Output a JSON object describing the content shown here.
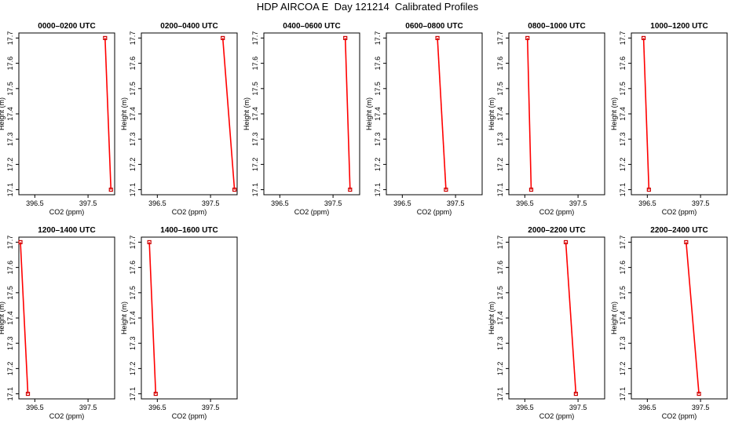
{
  "figure_title": "HDP AIRCOA E  Day 121214  Calibrated Profiles",
  "colors": {
    "line": "#ff0000",
    "marker": "#cc0000",
    "axes": "#000000"
  },
  "chart_data": [
    {
      "type": "line",
      "title": "0000–0200 UTC",
      "xlabel": "CO2 (ppm)",
      "ylabel": "Height (m)",
      "xlim": [
        396.2,
        398.0
      ],
      "ylim": [
        17.08,
        17.72
      ],
      "xticks": [
        396.5,
        397.5
      ],
      "xtick_labels": [
        "396.5",
        "397.5"
      ],
      "yticks": [
        17.1,
        17.2,
        17.3,
        17.4,
        17.5,
        17.6,
        17.7
      ],
      "ytick_labels": [
        "17.1",
        "17.2",
        "17.3",
        "17.4",
        "17.5",
        "17.6",
        "17.7"
      ],
      "points": [
        {
          "x": 397.82,
          "y": 17.7
        },
        {
          "x": 397.93,
          "y": 17.1
        }
      ]
    },
    {
      "type": "line",
      "title": "0200–0400 UTC",
      "xlabel": "CO2 (ppm)",
      "ylabel": "Height (m)",
      "xlim": [
        396.2,
        398.0
      ],
      "ylim": [
        17.08,
        17.72
      ],
      "xticks": [
        396.5,
        397.5
      ],
      "xtick_labels": [
        "396.5",
        "397.5"
      ],
      "yticks": [
        17.1,
        17.2,
        17.3,
        17.4,
        17.5,
        17.6,
        17.7
      ],
      "ytick_labels": [
        "17.1",
        "17.2",
        "17.3",
        "17.4",
        "17.5",
        "17.6",
        "17.7"
      ],
      "points": [
        {
          "x": 397.73,
          "y": 17.7
        },
        {
          "x": 397.95,
          "y": 17.1
        }
      ]
    },
    {
      "type": "line",
      "title": "0400–0600 UTC",
      "xlabel": "CO2 (ppm)",
      "ylabel": "Height (m)",
      "xlim": [
        396.2,
        398.0
      ],
      "ylim": [
        17.08,
        17.72
      ],
      "xticks": [
        396.5,
        397.5
      ],
      "xtick_labels": [
        "396.5",
        "397.5"
      ],
      "yticks": [
        17.1,
        17.2,
        17.3,
        17.4,
        17.5,
        17.6,
        17.7
      ],
      "ytick_labels": [
        "17.1",
        "17.2",
        "17.3",
        "17.4",
        "17.5",
        "17.6",
        "17.7"
      ],
      "points": [
        {
          "x": 397.73,
          "y": 17.7
        },
        {
          "x": 397.82,
          "y": 17.1
        }
      ]
    },
    {
      "type": "line",
      "title": "0600–0800 UTC",
      "xlabel": "CO2 (ppm)",
      "ylabel": "Height (m)",
      "xlim": [
        396.2,
        398.0
      ],
      "ylim": [
        17.08,
        17.72
      ],
      "xticks": [
        396.5,
        397.5
      ],
      "xtick_labels": [
        "396.5",
        "397.5"
      ],
      "yticks": [
        17.1,
        17.2,
        17.3,
        17.4,
        17.5,
        17.6,
        17.7
      ],
      "ytick_labels": [
        "17.1",
        "17.2",
        "17.3",
        "17.4",
        "17.5",
        "17.6",
        "17.7"
      ],
      "points": [
        {
          "x": 397.16,
          "y": 17.7
        },
        {
          "x": 397.32,
          "y": 17.1
        }
      ]
    },
    {
      "type": "line",
      "title": "0800–1000 UTC",
      "xlabel": "CO2 (ppm)",
      "ylabel": "Height (m)",
      "xlim": [
        396.2,
        398.0
      ],
      "ylim": [
        17.08,
        17.72
      ],
      "xticks": [
        396.5,
        397.5
      ],
      "xtick_labels": [
        "396.5",
        "397.5"
      ],
      "yticks": [
        17.1,
        17.2,
        17.3,
        17.4,
        17.5,
        17.6,
        17.7
      ],
      "ytick_labels": [
        "17.1",
        "17.2",
        "17.3",
        "17.4",
        "17.5",
        "17.6",
        "17.7"
      ],
      "points": [
        {
          "x": 396.55,
          "y": 17.7
        },
        {
          "x": 396.62,
          "y": 17.1
        }
      ]
    },
    {
      "type": "line",
      "title": "1000–1200 UTC",
      "xlabel": "CO2 (ppm)",
      "ylabel": "Height (m)",
      "xlim": [
        396.2,
        398.0
      ],
      "ylim": [
        17.08,
        17.72
      ],
      "xticks": [
        396.5,
        397.5
      ],
      "xtick_labels": [
        "396.5",
        "397.5"
      ],
      "yticks": [
        17.1,
        17.2,
        17.3,
        17.4,
        17.5,
        17.6,
        17.7
      ],
      "ytick_labels": [
        "17.1",
        "17.2",
        "17.3",
        "17.4",
        "17.5",
        "17.6",
        "17.7"
      ],
      "points": [
        {
          "x": 396.43,
          "y": 17.7
        },
        {
          "x": 396.53,
          "y": 17.1
        }
      ]
    },
    {
      "type": "line",
      "title": "1200–1400 UTC",
      "xlabel": "CO2 (ppm)",
      "ylabel": "Height (m)",
      "xlim": [
        396.2,
        398.0
      ],
      "ylim": [
        17.08,
        17.72
      ],
      "xticks": [
        396.5,
        397.5
      ],
      "xtick_labels": [
        "396.5",
        "397.5"
      ],
      "yticks": [
        17.1,
        17.2,
        17.3,
        17.4,
        17.5,
        17.6,
        17.7
      ],
      "ytick_labels": [
        "17.1",
        "17.2",
        "17.3",
        "17.4",
        "17.5",
        "17.6",
        "17.7"
      ],
      "points": [
        {
          "x": 396.23,
          "y": 17.7
        },
        {
          "x": 396.37,
          "y": 17.1
        }
      ]
    },
    {
      "type": "line",
      "title": "1400–1600 UTC",
      "xlabel": "CO2 (ppm)",
      "ylabel": "Height (m)",
      "xlim": [
        396.2,
        398.0
      ],
      "ylim": [
        17.08,
        17.72
      ],
      "xticks": [
        396.5,
        397.5
      ],
      "xtick_labels": [
        "396.5",
        "397.5"
      ],
      "yticks": [
        17.1,
        17.2,
        17.3,
        17.4,
        17.5,
        17.6,
        17.7
      ],
      "ytick_labels": [
        "17.1",
        "17.2",
        "17.3",
        "17.4",
        "17.5",
        "17.6",
        "17.7"
      ],
      "points": [
        {
          "x": 396.35,
          "y": 17.7
        },
        {
          "x": 396.47,
          "y": 17.1
        }
      ]
    },
    {
      "type": "line",
      "title": "2000–2200 UTC",
      "xlabel": "CO2 (ppm)",
      "ylabel": "Height (m)",
      "xlim": [
        396.2,
        398.0
      ],
      "ylim": [
        17.08,
        17.72
      ],
      "xticks": [
        396.5,
        397.5
      ],
      "xtick_labels": [
        "396.5",
        "397.5"
      ],
      "yticks": [
        17.1,
        17.2,
        17.3,
        17.4,
        17.5,
        17.6,
        17.7
      ],
      "ytick_labels": [
        "17.1",
        "17.2",
        "17.3",
        "17.4",
        "17.5",
        "17.6",
        "17.7"
      ],
      "points": [
        {
          "x": 397.27,
          "y": 17.7
        },
        {
          "x": 397.46,
          "y": 17.1
        }
      ]
    },
    {
      "type": "line",
      "title": "2200–2400 UTC",
      "xlabel": "CO2 (ppm)",
      "ylabel": "Height (m)",
      "xlim": [
        396.2,
        398.0
      ],
      "ylim": [
        17.08,
        17.72
      ],
      "xticks": [
        396.5,
        397.5
      ],
      "xtick_labels": [
        "396.5",
        "397.5"
      ],
      "yticks": [
        17.1,
        17.2,
        17.3,
        17.4,
        17.5,
        17.6,
        17.7
      ],
      "ytick_labels": [
        "17.1",
        "17.2",
        "17.3",
        "17.4",
        "17.5",
        "17.6",
        "17.7"
      ],
      "points": [
        {
          "x": 397.23,
          "y": 17.7
        },
        {
          "x": 397.47,
          "y": 17.1
        }
      ]
    }
  ]
}
